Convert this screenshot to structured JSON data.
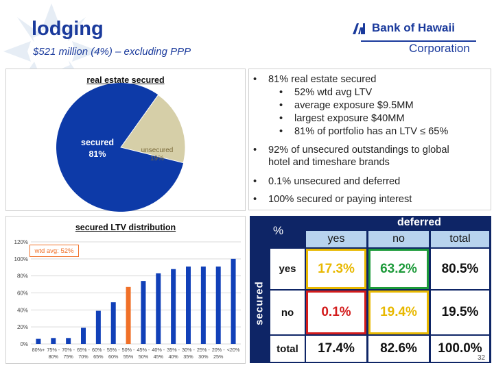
{
  "header": {
    "title": "lodging",
    "subtitle": "$521 million (4%) – excluding PPP"
  },
  "logo": {
    "brand": "Bank of Hawaii",
    "corporation": "Corporation"
  },
  "pie": {
    "title": "real estate secured",
    "secured_label": "secured",
    "secured_pct": "81%",
    "unsecured_label": "unsecured",
    "unsecured_pct": "19%"
  },
  "bullets": {
    "b1": "81% real estate secured",
    "b1a": "52% wtd avg LTV",
    "b1b": "average exposure $9.5MM",
    "b1c": "largest exposure $40MM",
    "b1d": "81% of portfolio has an LTV ≤ 65%",
    "b2_line1": "92% of unsecured outstandings to global",
    "b2_line2": "hotel and timeshare brands",
    "b3": "0.1% unsecured and deferred",
    "b4": "100% secured or paying interest"
  },
  "grid": {
    "pct_label": "%",
    "deferred_label": "deferred",
    "secured_label": "secured",
    "col_yes": "yes",
    "col_no": "no",
    "col_total": "total",
    "row_yes": "yes",
    "row_no": "no",
    "row_total": "total",
    "yes_yes": "17.3%",
    "yes_no": "63.2%",
    "yes_total": "80.5%",
    "no_yes": "0.1%",
    "no_no": "19.4%",
    "no_total": "19.5%",
    "total_yes": "17.4%",
    "total_no": "82.6%",
    "total_total": "100.0%"
  },
  "page_number": "32",
  "colors": {
    "brand_blue": "#1a3a9c",
    "navy": "#0e2566",
    "pie_secured": "#0d3aa8",
    "pie_unsecured": "#d6cfa8",
    "bar_blue": "#1140b8",
    "bar_highlight": "#f07028",
    "yellow": "#e8b800",
    "green": "#1d9a3a",
    "red": "#d31c1c"
  },
  "chart_data": [
    {
      "type": "pie",
      "title": "real estate secured",
      "categories": [
        "secured",
        "unsecured"
      ],
      "values": [
        81,
        19
      ]
    },
    {
      "type": "bar",
      "title": "secured LTV distribution",
      "categories": [
        "80%+",
        "75% - 80%",
        "70% - 75%",
        "65% - 70%",
        "60% - 65%",
        "55% - 60%",
        "50% - 55%",
        "45% - 50%",
        "40% - 45%",
        "35% - 40%",
        "30% - 35%",
        "25% - 30%",
        "20% - 25%",
        "<20%"
      ],
      "tick_top": [
        "80%+",
        "75% -",
        "70% -",
        "65% -",
        "60% -",
        "55% -",
        "50% -",
        "45% -",
        "40% -",
        "35% -",
        "30% -",
        "25% -",
        "20% -",
        "<20%"
      ],
      "tick_bottom": [
        "",
        "80%",
        "75%",
        "70%",
        "65%",
        "60%",
        "55%",
        "50%",
        "45%",
        "40%",
        "35%",
        "30%",
        "25%",
        ""
      ],
      "values": [
        6,
        7,
        7,
        19,
        39,
        49,
        67,
        74,
        83,
        88,
        91,
        91,
        91,
        100
      ],
      "highlight_index": 6,
      "ylim": [
        0,
        120
      ],
      "yticks": [
        "0%",
        "20%",
        "40%",
        "60%",
        "80%",
        "100%",
        "120%"
      ],
      "annotation": "wtd avg: 52%",
      "grid": true
    }
  ]
}
